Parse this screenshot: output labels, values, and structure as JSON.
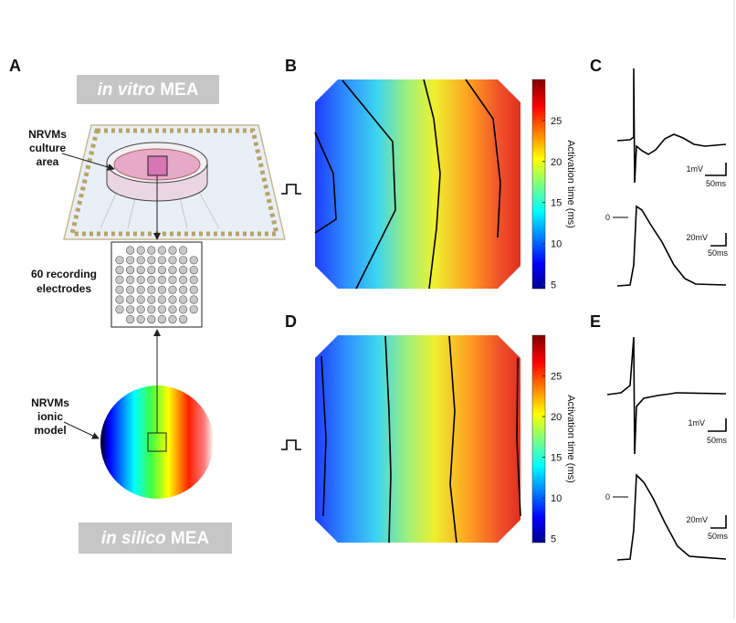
{
  "panel_labels": [
    "A",
    "B",
    "C",
    "D",
    "E"
  ],
  "panel_a": {
    "top_banner": {
      "italic": "in vitro",
      "rest": "MEA"
    },
    "culture_label": [
      "NRVMs",
      "culture",
      "area"
    ],
    "electrodes_label": [
      "60 recording",
      "electrodes"
    ],
    "model_label": [
      "NRVMs",
      "ionic",
      "model"
    ],
    "bottom_banner": {
      "italic": "in silico",
      "rest": "MEA"
    }
  },
  "maps": [
    {
      "colorbar_label": "Activation time (ms)",
      "clim": [
        4.5,
        30
      ],
      "ticks": [
        5,
        10,
        15,
        20,
        25
      ]
    },
    {
      "colorbar_label": "Activation time (ms)",
      "clim": [
        4.5,
        30
      ],
      "ticks": [
        5,
        10,
        15,
        20,
        25
      ]
    }
  ],
  "traces": [
    {
      "scale_y": "1mV",
      "scale_x": "50ms"
    },
    {
      "zero": "0",
      "scale_y": "20mV",
      "scale_x": "50ms"
    },
    {
      "scale_y": "1mV",
      "scale_x": "50ms"
    },
    {
      "zero": "0",
      "scale_y": "20mV",
      "scale_x": "50ms"
    }
  ]
}
